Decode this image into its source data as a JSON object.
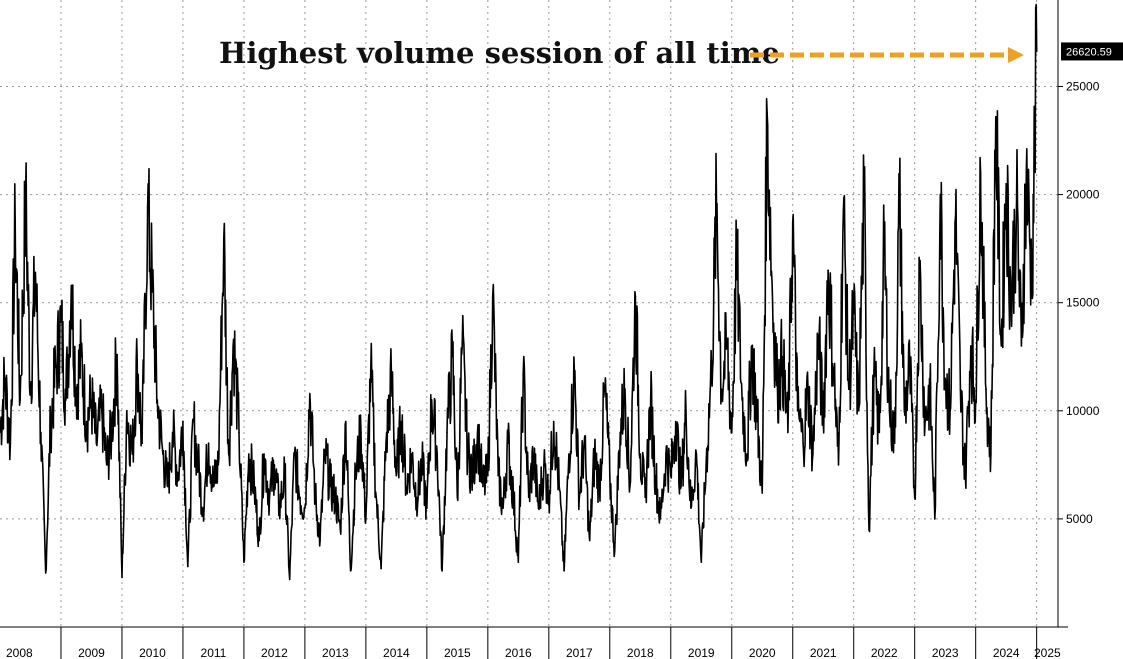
{
  "chart_data": {
    "type": "line",
    "title": "",
    "annotation": "Highest volume session of all time",
    "last_value_label": "26620.59",
    "last_value": 26620.59,
    "xlabel": "",
    "ylabel": "",
    "x_tick_labels": [
      "2008",
      "2009",
      "2010",
      "2011",
      "2012",
      "2013",
      "2014",
      "2015",
      "2016",
      "2017",
      "2018",
      "2019",
      "2020",
      "2021",
      "2022",
      "2023",
      "2024",
      "2025"
    ],
    "y_tick_labels": [
      "5000",
      "10000",
      "15000",
      "20000",
      "25000"
    ],
    "y_ticks": [
      5000,
      10000,
      15000,
      20000,
      25000
    ],
    "xlim": [
      2008.0,
      2025.35
    ],
    "ylim": [
      0,
      29000
    ],
    "grid": true,
    "legend": "none",
    "line_color": "#000000",
    "annotation_arrow_color": "#f0a020",
    "badge_color": "#000000",
    "series": [
      {
        "values_note_free": true,
        "points": [
          [
            2008.0,
            9000
          ],
          [
            2008.08,
            11500
          ],
          [
            2008.17,
            8500
          ],
          [
            2008.25,
            18700
          ],
          [
            2008.33,
            10500
          ],
          [
            2008.42,
            19800
          ],
          [
            2008.5,
            11000
          ],
          [
            2008.58,
            16400
          ],
          [
            2008.67,
            9000
          ],
          [
            2008.75,
            2500
          ],
          [
            2008.83,
            9500
          ],
          [
            2008.92,
            12000
          ],
          [
            2009.0,
            14100
          ],
          [
            2009.08,
            10500
          ],
          [
            2009.17,
            15800
          ],
          [
            2009.25,
            11000
          ],
          [
            2009.33,
            12500
          ],
          [
            2009.42,
            9500
          ],
          [
            2009.5,
            10500
          ],
          [
            2009.58,
            8500
          ],
          [
            2009.67,
            10000
          ],
          [
            2009.75,
            7500
          ],
          [
            2009.83,
            9000
          ],
          [
            2009.92,
            12600
          ],
          [
            2010.0,
            2300
          ],
          [
            2010.08,
            10000
          ],
          [
            2010.17,
            8000
          ],
          [
            2010.25,
            12300
          ],
          [
            2010.33,
            8500
          ],
          [
            2010.42,
            19400
          ],
          [
            2010.5,
            15500
          ],
          [
            2010.58,
            10500
          ],
          [
            2010.67,
            8000
          ],
          [
            2010.75,
            6500
          ],
          [
            2010.83,
            9000
          ],
          [
            2010.92,
            7000
          ],
          [
            2011.0,
            9500
          ],
          [
            2011.08,
            2800
          ],
          [
            2011.17,
            9500
          ],
          [
            2011.25,
            7500
          ],
          [
            2011.33,
            5500
          ],
          [
            2011.42,
            8500
          ],
          [
            2011.5,
            6500
          ],
          [
            2011.58,
            7500
          ],
          [
            2011.67,
            18000
          ],
          [
            2011.75,
            8000
          ],
          [
            2011.83,
            13300
          ],
          [
            2011.92,
            9000
          ],
          [
            2012.0,
            3000
          ],
          [
            2012.08,
            8000
          ],
          [
            2012.17,
            6500
          ],
          [
            2012.25,
            4000
          ],
          [
            2012.33,
            8000
          ],
          [
            2012.42,
            6000
          ],
          [
            2012.5,
            7500
          ],
          [
            2012.58,
            5500
          ],
          [
            2012.67,
            7000
          ],
          [
            2012.75,
            2200
          ],
          [
            2012.83,
            8000
          ],
          [
            2012.92,
            6000
          ],
          [
            2013.0,
            5500
          ],
          [
            2013.08,
            10800
          ],
          [
            2013.17,
            6000
          ],
          [
            2013.25,
            4000
          ],
          [
            2013.33,
            8000
          ],
          [
            2013.42,
            6500
          ],
          [
            2013.5,
            6000
          ],
          [
            2013.58,
            4500
          ],
          [
            2013.67,
            9500
          ],
          [
            2013.75,
            2600
          ],
          [
            2013.83,
            7000
          ],
          [
            2013.92,
            9000
          ],
          [
            2014.0,
            5000
          ],
          [
            2014.08,
            12000
          ],
          [
            2014.17,
            6000
          ],
          [
            2014.25,
            2700
          ],
          [
            2014.33,
            8500
          ],
          [
            2014.42,
            11500
          ],
          [
            2014.5,
            7000
          ],
          [
            2014.58,
            9500
          ],
          [
            2014.67,
            6500
          ],
          [
            2014.75,
            8000
          ],
          [
            2014.83,
            6000
          ],
          [
            2014.92,
            7500
          ],
          [
            2015.0,
            5500
          ],
          [
            2015.08,
            10500
          ],
          [
            2015.17,
            8000
          ],
          [
            2015.25,
            2600
          ],
          [
            2015.33,
            9000
          ],
          [
            2015.42,
            12500
          ],
          [
            2015.5,
            6000
          ],
          [
            2015.58,
            13000
          ],
          [
            2015.67,
            8000
          ],
          [
            2015.75,
            7000
          ],
          [
            2015.83,
            9000
          ],
          [
            2015.92,
            6500
          ],
          [
            2016.0,
            7000
          ],
          [
            2016.08,
            15300
          ],
          [
            2016.17,
            7000
          ],
          [
            2016.25,
            5500
          ],
          [
            2016.33,
            8500
          ],
          [
            2016.42,
            6000
          ],
          [
            2016.5,
            3000
          ],
          [
            2016.58,
            11700
          ],
          [
            2016.67,
            6000
          ],
          [
            2016.75,
            8000
          ],
          [
            2016.83,
            5500
          ],
          [
            2016.92,
            7500
          ],
          [
            2017.0,
            6000
          ],
          [
            2017.08,
            9500
          ],
          [
            2017.17,
            6500
          ],
          [
            2017.25,
            2600
          ],
          [
            2017.33,
            8000
          ],
          [
            2017.42,
            11800
          ],
          [
            2017.5,
            6000
          ],
          [
            2017.58,
            8500
          ],
          [
            2017.67,
            4000
          ],
          [
            2017.75,
            8000
          ],
          [
            2017.83,
            6500
          ],
          [
            2017.92,
            11000
          ],
          [
            2018.0,
            7000
          ],
          [
            2018.08,
            3500
          ],
          [
            2018.17,
            9000
          ],
          [
            2018.25,
            11000
          ],
          [
            2018.33,
            6500
          ],
          [
            2018.42,
            15300
          ],
          [
            2018.5,
            8000
          ],
          [
            2018.58,
            6000
          ],
          [
            2018.67,
            10500
          ],
          [
            2018.75,
            7000
          ],
          [
            2018.83,
            5000
          ],
          [
            2018.92,
            8000
          ],
          [
            2019.0,
            7000
          ],
          [
            2019.08,
            9500
          ],
          [
            2019.17,
            6500
          ],
          [
            2019.25,
            10000
          ],
          [
            2019.33,
            5500
          ],
          [
            2019.42,
            8000
          ],
          [
            2019.5,
            3000
          ],
          [
            2019.58,
            7500
          ],
          [
            2019.67,
            12000
          ],
          [
            2019.75,
            19500
          ],
          [
            2019.83,
            11000
          ],
          [
            2019.92,
            13000
          ],
          [
            2020.0,
            9000
          ],
          [
            2020.08,
            17000
          ],
          [
            2020.17,
            10500
          ],
          [
            2020.25,
            8000
          ],
          [
            2020.33,
            13000
          ],
          [
            2020.42,
            9500
          ],
          [
            2020.5,
            6200
          ],
          [
            2020.58,
            23800
          ],
          [
            2020.67,
            15000
          ],
          [
            2020.75,
            11000
          ],
          [
            2020.83,
            12500
          ],
          [
            2020.92,
            9000
          ],
          [
            2021.0,
            18700
          ],
          [
            2021.08,
            10000
          ],
          [
            2021.17,
            8500
          ],
          [
            2021.25,
            11000
          ],
          [
            2021.33,
            8000
          ],
          [
            2021.42,
            13500
          ],
          [
            2021.5,
            9500
          ],
          [
            2021.58,
            16500
          ],
          [
            2021.67,
            12000
          ],
          [
            2021.75,
            7500
          ],
          [
            2021.83,
            19300
          ],
          [
            2021.92,
            11000
          ],
          [
            2022.0,
            14500
          ],
          [
            2022.08,
            10000
          ],
          [
            2022.17,
            20000
          ],
          [
            2022.25,
            4500
          ],
          [
            2022.33,
            11500
          ],
          [
            2022.42,
            9000
          ],
          [
            2022.5,
            17500
          ],
          [
            2022.58,
            10500
          ],
          [
            2022.67,
            8500
          ],
          [
            2022.75,
            20000
          ],
          [
            2022.83,
            10000
          ],
          [
            2022.92,
            12000
          ],
          [
            2023.0,
            6000
          ],
          [
            2023.08,
            16500
          ],
          [
            2023.17,
            9500
          ],
          [
            2023.25,
            11000
          ],
          [
            2023.33,
            5000
          ],
          [
            2023.42,
            20000
          ],
          [
            2023.5,
            11500
          ],
          [
            2023.58,
            10000
          ],
          [
            2023.67,
            19000
          ],
          [
            2023.75,
            11000
          ],
          [
            2023.83,
            7000
          ],
          [
            2023.92,
            13000
          ],
          [
            2024.0,
            10500
          ],
          [
            2024.08,
            21000
          ],
          [
            2024.17,
            11000
          ],
          [
            2024.25,
            8000
          ],
          [
            2024.33,
            23600
          ],
          [
            2024.42,
            13000
          ],
          [
            2024.5,
            20500
          ],
          [
            2024.58,
            15000
          ],
          [
            2024.67,
            19500
          ],
          [
            2024.75,
            13000
          ],
          [
            2024.83,
            21000
          ],
          [
            2024.92,
            16000
          ],
          [
            2025.0,
            26620.59
          ]
        ]
      }
    ]
  }
}
